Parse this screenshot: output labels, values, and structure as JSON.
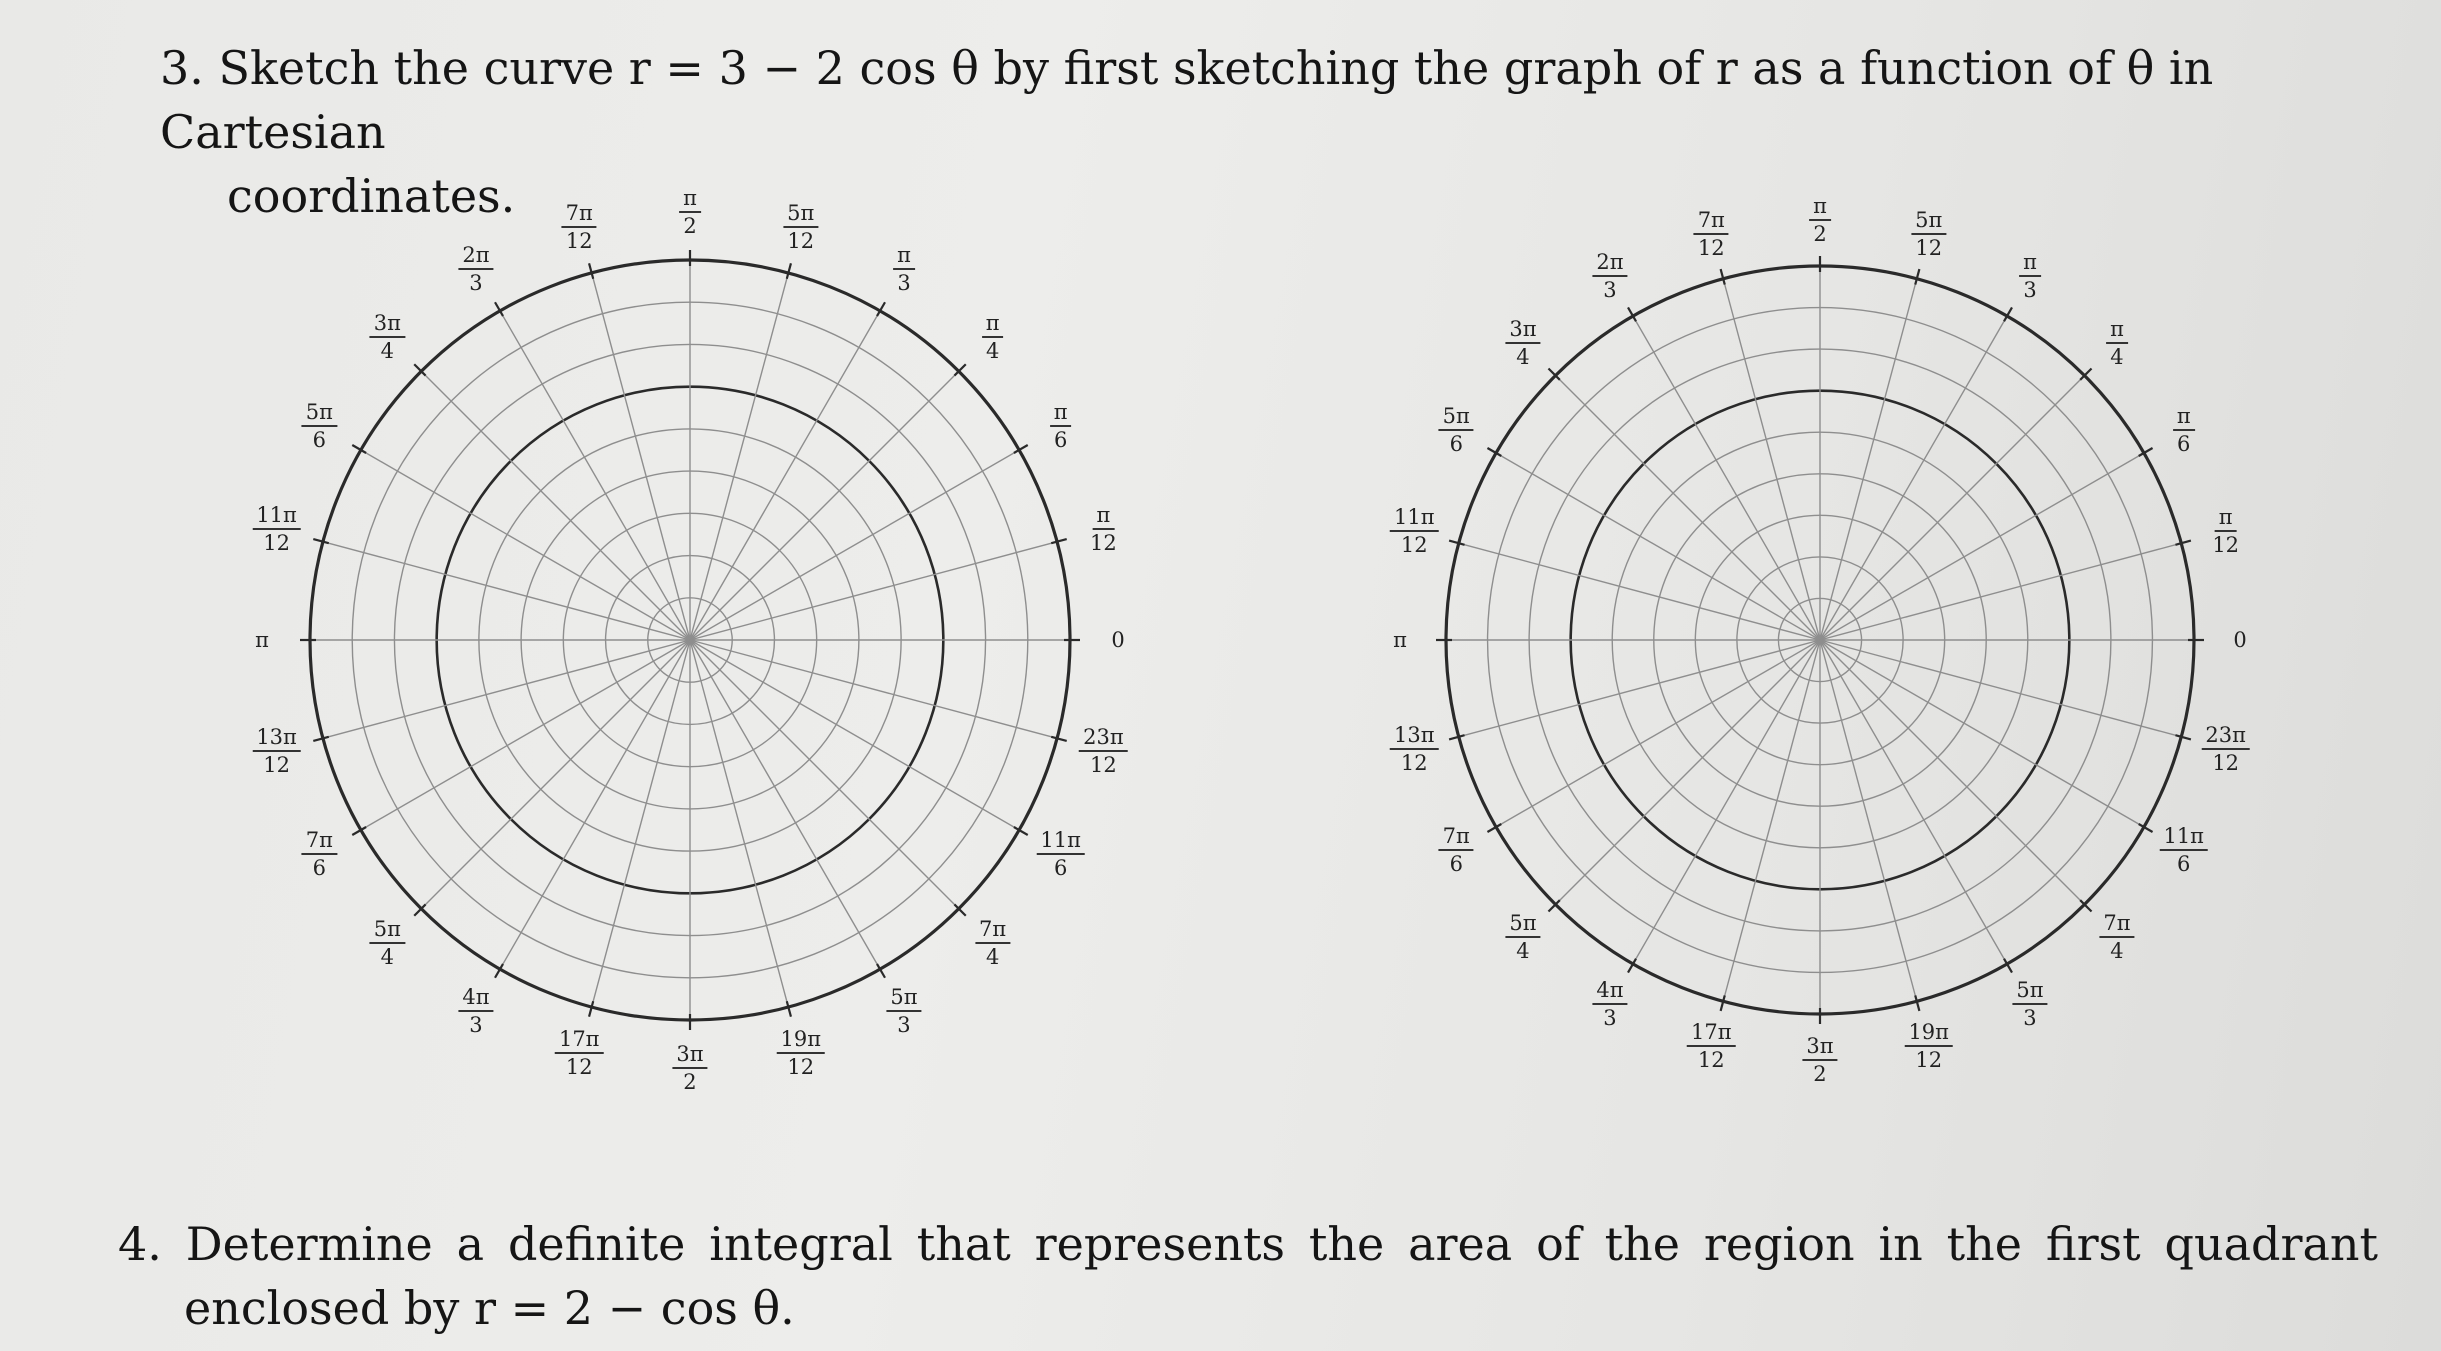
{
  "problem3": {
    "number": "3.",
    "line1": "Sketch the curve r = 3 − 2 cos θ by first sketching the graph of r as a function of θ in Cartesian",
    "line2": "coordinates."
  },
  "problem4": {
    "number": "4.",
    "line1": "Determine a definite integral that represents the area of the region in the first quadrant",
    "line2": "enclosed by r = 2 − cos θ."
  },
  "polar_grid": {
    "rings": 9,
    "spokes_deg": 15,
    "angle_labels": [
      {
        "deg": 0,
        "num": "0",
        "den": ""
      },
      {
        "deg": 15,
        "num": "π",
        "den": "12"
      },
      {
        "deg": 30,
        "num": "π",
        "den": "6"
      },
      {
        "deg": 45,
        "num": "π",
        "den": "4"
      },
      {
        "deg": 60,
        "num": "π",
        "den": "3"
      },
      {
        "deg": 75,
        "num": "5π",
        "den": "12"
      },
      {
        "deg": 90,
        "num": "π",
        "den": "2"
      },
      {
        "deg": 105,
        "num": "7π",
        "den": "12"
      },
      {
        "deg": 120,
        "num": "2π",
        "den": "3"
      },
      {
        "deg": 135,
        "num": "3π",
        "den": "4"
      },
      {
        "deg": 150,
        "num": "5π",
        "den": "6"
      },
      {
        "deg": 165,
        "num": "11π",
        "den": "12"
      },
      {
        "deg": 180,
        "num": "π",
        "den": ""
      },
      {
        "deg": 195,
        "num": "13π",
        "den": "12"
      },
      {
        "deg": 210,
        "num": "7π",
        "den": "6"
      },
      {
        "deg": 225,
        "num": "5π",
        "den": "4"
      },
      {
        "deg": 240,
        "num": "4π",
        "den": "3"
      },
      {
        "deg": 255,
        "num": "17π",
        "den": "12"
      },
      {
        "deg": 270,
        "num": "3π",
        "den": "2"
      },
      {
        "deg": 285,
        "num": "19π",
        "den": "12"
      },
      {
        "deg": 300,
        "num": "5π",
        "den": "3"
      },
      {
        "deg": 315,
        "num": "7π",
        "den": "4"
      },
      {
        "deg": 330,
        "num": "11π",
        "den": "6"
      },
      {
        "deg": 345,
        "num": "23π",
        "den": "12"
      }
    ]
  }
}
